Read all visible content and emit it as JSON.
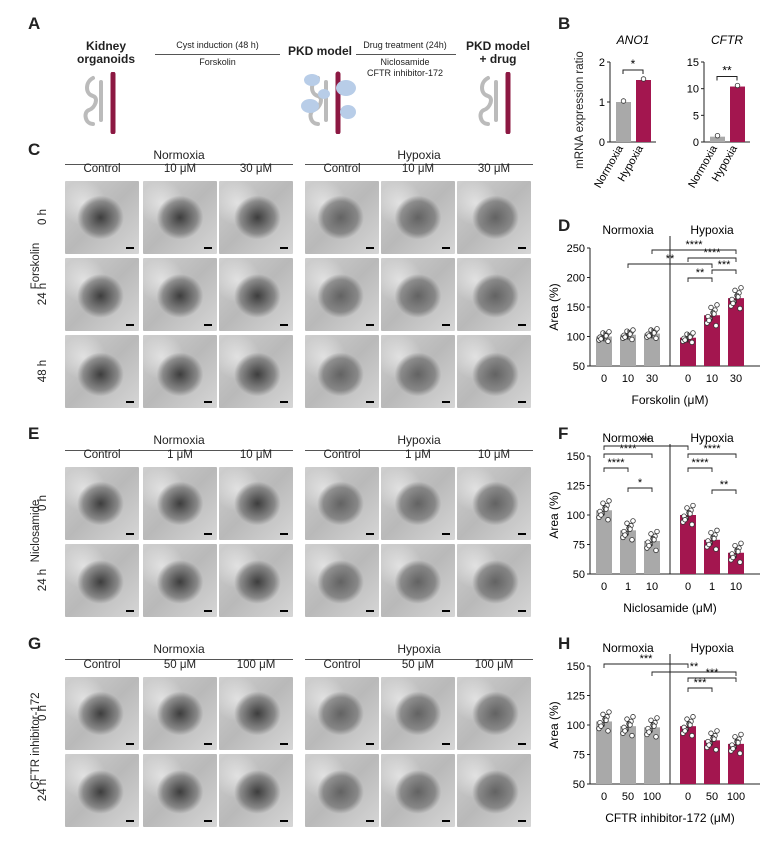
{
  "panel_letters": {
    "A": "A",
    "B": "B",
    "C": "C",
    "D": "D",
    "E": "E",
    "F": "F",
    "G": "G",
    "H": "H"
  },
  "schematic": {
    "stage1": "Kidney\norganoids",
    "step1_top": "Cyst induction (48 h)",
    "step1_bottom": "Forskolin",
    "stage2": "PKD model",
    "step2_top": "Drug treatment (24h)",
    "step2_bottom": "Niclosamide\nCFTR inhibitor-172",
    "stage3": "PKD model\n+ drug"
  },
  "conditions": {
    "normoxia": "Normoxia",
    "hypoxia": "Hypoxia"
  },
  "image_grids": {
    "C": {
      "drug": "Forskolin",
      "columns": [
        "Control",
        "10 μM",
        "30 μM"
      ],
      "rows": [
        "0 h",
        "24 h",
        "48 h"
      ]
    },
    "E": {
      "drug": "Niclosamide",
      "columns": [
        "Control",
        "1 μM",
        "10 μM"
      ],
      "rows": [
        "0 h",
        "24 h"
      ]
    },
    "G": {
      "drug": "CFTR inhibitor-172",
      "columns": [
        "Control",
        "50 μM",
        "100 μM"
      ],
      "rows": [
        "0 h",
        "24 h"
      ]
    }
  },
  "colors": {
    "normoxia_bar": "#a9a9a9",
    "hypoxia_bar": "#a3164f",
    "point_fill": "#ffffff"
  },
  "chart_data": [
    {
      "panel": "B",
      "type": "bar",
      "title": "ANO1",
      "ylabel": "mRNA expression ratio",
      "categories": [
        "Normoxia",
        "Hypoxia"
      ],
      "values": [
        1.0,
        1.55
      ],
      "ylim": [
        0,
        2
      ],
      "yticks": [
        "0",
        "1",
        "2"
      ],
      "significance": "*"
    },
    {
      "panel": "B",
      "type": "bar",
      "title": "CFTR",
      "ylabel": "",
      "categories": [
        "Normoxia",
        "Hypoxia"
      ],
      "values": [
        1.0,
        10.4
      ],
      "ylim": [
        0,
        15
      ],
      "yticks": [
        "0",
        "5",
        "10",
        "15"
      ],
      "significance": "**"
    },
    {
      "panel": "D",
      "type": "bar",
      "ylabel": "Area (%)",
      "xlabel": "Forskolin (μM)",
      "groups": [
        "Normoxia",
        "Hypoxia"
      ],
      "categories": [
        "0",
        "10",
        "30",
        "0",
        "10",
        "30"
      ],
      "values": [
        100,
        103,
        105,
        98,
        136,
        165
      ],
      "ylim": [
        50,
        250
      ],
      "yticks": [
        "50",
        "100",
        "150",
        "200",
        "250"
      ],
      "significance": [
        "**",
        "****",
        "****",
        "**",
        "***"
      ]
    },
    {
      "panel": "F",
      "type": "bar",
      "ylabel": "Area (%)",
      "xlabel": "Niclosamide (μM)",
      "groups": [
        "Normoxia",
        "Hypoxia"
      ],
      "categories": [
        "0",
        "1",
        "10",
        "0",
        "1",
        "10"
      ],
      "values": [
        104,
        87,
        78,
        100,
        79,
        68
      ],
      "ylim": [
        50,
        150
      ],
      "yticks": [
        "50",
        "75",
        "100",
        "125",
        "150"
      ],
      "significance": [
        "****",
        "****",
        "*",
        "**",
        "****",
        "****",
        "**"
      ]
    },
    {
      "panel": "H",
      "type": "bar",
      "ylabel": "Area (%)",
      "xlabel": "CFTR inhibitor-172 (μM)",
      "groups": [
        "Normoxia",
        "Hypoxia"
      ],
      "categories": [
        "0",
        "50",
        "100",
        "0",
        "50",
        "100"
      ],
      "values": [
        103,
        99,
        98,
        99,
        87,
        84
      ],
      "ylim": [
        50,
        150
      ],
      "yticks": [
        "50",
        "75",
        "100",
        "125",
        "150"
      ],
      "significance": [
        "**",
        "***",
        "***",
        "***"
      ]
    }
  ]
}
